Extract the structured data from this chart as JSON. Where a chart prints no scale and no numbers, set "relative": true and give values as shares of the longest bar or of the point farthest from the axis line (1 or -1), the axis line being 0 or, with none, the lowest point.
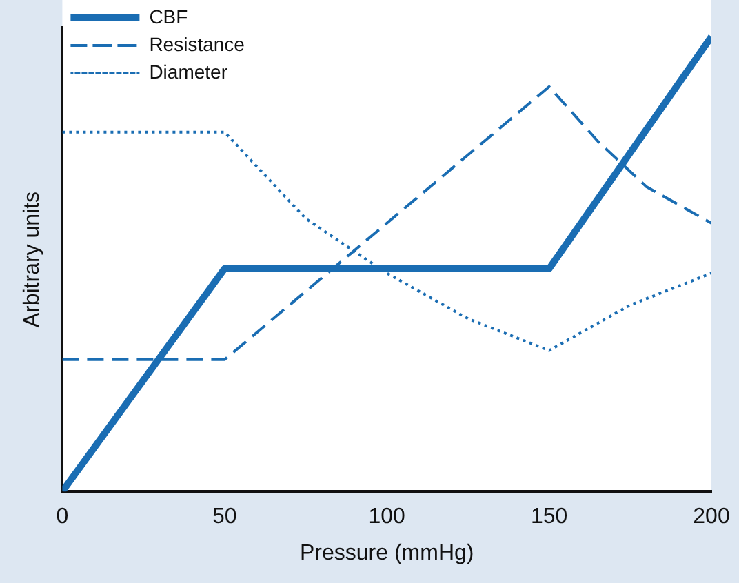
{
  "chart_data": {
    "type": "line",
    "relative": true,
    "xlabel": "Pressure (mmHg)",
    "ylabel": "Arbitrary units",
    "xlim": [
      0,
      200
    ],
    "xticks": [
      0,
      50,
      100,
      150,
      200
    ],
    "grid": false,
    "legend": "top left",
    "marker": "none",
    "series": [
      {
        "name": "CBF",
        "color": "#1a6db3",
        "line_style": "solid",
        "x": [
          0,
          50,
          150,
          200
        ],
        "values": [
          0,
          0.49,
          0.49,
          1
        ]
      },
      {
        "name": "Resistance",
        "color": "#1a6db3",
        "line_style": "dashed",
        "x": [
          0,
          50,
          150,
          165,
          180,
          200
        ],
        "values": [
          0.29,
          0.29,
          0.89,
          0.77,
          0.67,
          0.59
        ]
      },
      {
        "name": "Diameter",
        "color": "#1a6db3",
        "line_style": "dotted",
        "x": [
          0,
          50,
          75,
          100,
          125,
          150,
          175,
          200
        ],
        "values": [
          0.79,
          0.79,
          0.6,
          0.48,
          0.38,
          0.31,
          0.41,
          0.48
        ]
      }
    ]
  }
}
